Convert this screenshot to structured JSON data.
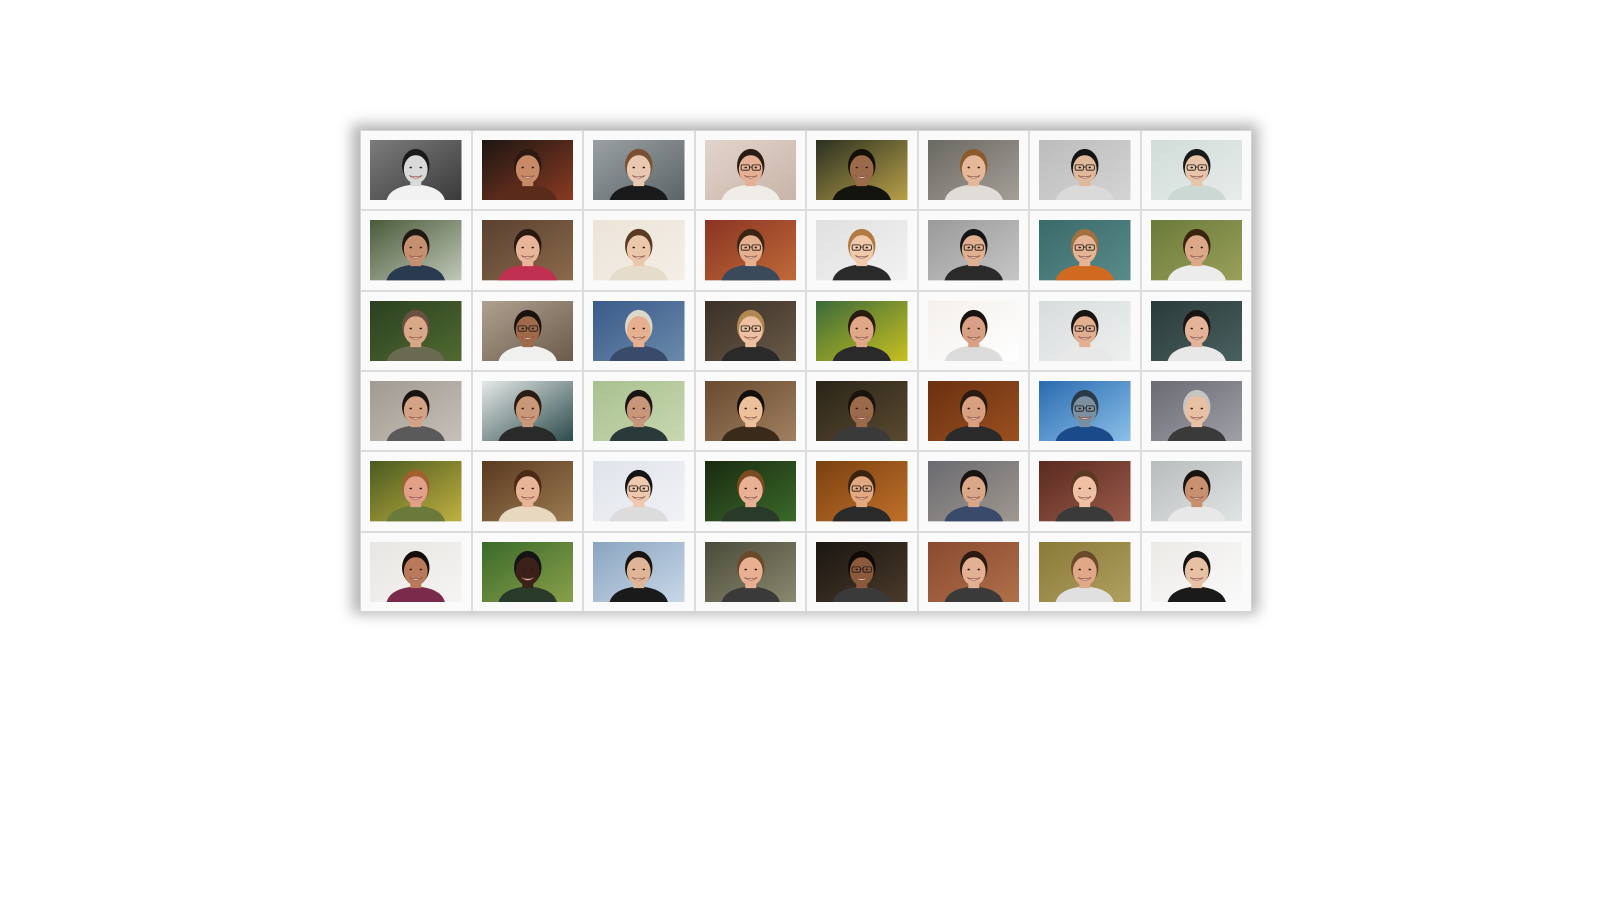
{
  "photos": [
    {
      "bg": "#7c7c7c",
      "bg2": "#3a3a3a",
      "skin": "#d9d9d9",
      "hair": "#1a1a1a",
      "shirt": "#f2f2f2",
      "glasses": false
    },
    {
      "bg": "#1c1612",
      "bg2": "#8a3a22",
      "skin": "#c88a66",
      "hair": "#2a1a12",
      "shirt": "#5a2a1a",
      "glasses": false
    },
    {
      "bg": "#9aa0a4",
      "bg2": "#5c6468",
      "skin": "#e8c8b0",
      "hair": "#7a5030",
      "shirt": "#1a1a1a",
      "glasses": false
    },
    {
      "bg": "#e2d4cc",
      "bg2": "#c8b4a8",
      "skin": "#e6b094",
      "hair": "#2a1c14",
      "shirt": "#f0ece8",
      "glasses": true
    },
    {
      "bg": "#2a3020",
      "bg2": "#b8a04a",
      "skin": "#9a6a4a",
      "hair": "#141008",
      "shirt": "#14140e",
      "glasses": false
    },
    {
      "bg": "#6a6862",
      "bg2": "#a4a098",
      "skin": "#e4b898",
      "hair": "#8a5a2a",
      "shirt": "#e0dcd8",
      "glasses": false
    },
    {
      "bg": "#bcbcbc",
      "bg2": "#d4d4d4",
      "skin": "#e0b89a",
      "hair": "#141414",
      "shirt": "#dadada",
      "glasses": true
    },
    {
      "bg": "#d0dcd8",
      "bg2": "#e8ecea",
      "skin": "#e8c4a8",
      "hair": "#1a1a1a",
      "shirt": "#ccd8d4",
      "glasses": true
    },
    {
      "bg": "#4a5a3a",
      "bg2": "#c0c8b8",
      "skin": "#c49070",
      "hair": "#201810",
      "shirt": "#2a3a50",
      "glasses": false
    },
    {
      "bg": "#5a4030",
      "bg2": "#8a6a4a",
      "skin": "#e8b49a",
      "hair": "#2a1810",
      "shirt": "#c03050",
      "glasses": false
    },
    {
      "bg": "#ece4d8",
      "bg2": "#f4eee6",
      "skin": "#ecc8aa",
      "hair": "#5a3a22",
      "shirt": "#e6dccc",
      "glasses": false
    },
    {
      "bg": "#8a3422",
      "bg2": "#c06a3a",
      "skin": "#e4b090",
      "hair": "#3a2414",
      "shirt": "#3a4a5a",
      "glasses": true
    },
    {
      "bg": "#e0e0e0",
      "bg2": "#f2f2f2",
      "skin": "#f0c8aa",
      "hair": "#b07a40",
      "shirt": "#2a2a2a",
      "glasses": true
    },
    {
      "bg": "#9a9a9a",
      "bg2": "#c6c6c6",
      "skin": "#e0b090",
      "hair": "#141414",
      "shirt": "#2a2a2a",
      "glasses": true
    },
    {
      "bg": "#3a6a6a",
      "bg2": "#5a8a8a",
      "skin": "#e4b494",
      "hair": "#a07040",
      "shirt": "#d06a20",
      "glasses": true
    },
    {
      "bg": "#6a7a3a",
      "bg2": "#9aa05a",
      "skin": "#dca88a",
      "hair": "#3a2410",
      "shirt": "#ececec",
      "glasses": false
    },
    {
      "bg": "#2a4020",
      "bg2": "#506a30",
      "skin": "#d8a888",
      "hair": "#6a5040",
      "shirt": "#6a6a50",
      "glasses": false
    },
    {
      "bg": "#b0a090",
      "bg2": "#6a5a4a",
      "skin": "#a06a4a",
      "hair": "#1a120c",
      "shirt": "#f0f0ee",
      "glasses": true
    },
    {
      "bg": "#3a5a8a",
      "bg2": "#6a8aaa",
      "skin": "#e6b090",
      "hair": "#dcd8cc",
      "shirt": "#3a4a6a",
      "glasses": false
    },
    {
      "bg": "#3a3026",
      "bg2": "#6a5a48",
      "skin": "#ecc0a0",
      "hair": "#b08850",
      "shirt": "#2a2a2a",
      "glasses": true
    },
    {
      "bg": "#3a6a3a",
      "bg2": "#c8c020",
      "skin": "#e0a888",
      "hair": "#2a1a10",
      "shirt": "#2a2a2a",
      "glasses": false
    },
    {
      "bg": "#f4f0ec",
      "bg2": "#ffffff",
      "skin": "#d8a084",
      "hair": "#1a120c",
      "shirt": "#dcdcdc",
      "glasses": false
    },
    {
      "bg": "#d8dcdc",
      "bg2": "#eef0f0",
      "skin": "#e2b090",
      "hair": "#1a1410",
      "shirt": "#e8e8e8",
      "glasses": true
    },
    {
      "bg": "#2a3a3a",
      "bg2": "#4a6060",
      "skin": "#e4b49a",
      "hair": "#1a1410",
      "shirt": "#e8e8e8",
      "glasses": false
    },
    {
      "bg": "#a09a92",
      "bg2": "#c6c0b8",
      "skin": "#d4a284",
      "hair": "#1a1410",
      "shirt": "#5a5a5a",
      "glasses": false
    },
    {
      "bg": "#e6e8e8",
      "bg2": "#2a4a4a",
      "skin": "#c89878",
      "hair": "#2a1c12",
      "shirt": "#2a2a2a",
      "glasses": false
    },
    {
      "bg": "#a8c090",
      "bg2": "#c8d8b0",
      "skin": "#c8967a",
      "hair": "#1a1410",
      "shirt": "#2a3a3a",
      "glasses": false
    },
    {
      "bg": "#6a4a30",
      "bg2": "#a08060",
      "skin": "#ecc09a",
      "hair": "#140e0a",
      "shirt": "#3a2a1a",
      "glasses": false
    },
    {
      "bg": "#2a2418",
      "bg2": "#5a4a30",
      "skin": "#9a6a4a",
      "hair": "#1a120c",
      "shirt": "#3a3a3a",
      "glasses": false
    },
    {
      "bg": "#6a3010",
      "bg2": "#9a5020",
      "skin": "#d8a080",
      "hair": "#2a1a10",
      "shirt": "#2a2a2a",
      "glasses": false
    },
    {
      "bg": "#2a6ab0",
      "bg2": "#8ac0e8",
      "skin": "#7a90a0",
      "hair": "#2a3a4a",
      "shirt": "#1a4a8a",
      "glasses": true
    },
    {
      "bg": "#6a6a72",
      "bg2": "#a0a0a8",
      "skin": "#e8c0a4",
      "hair": "#c8c4c0",
      "shirt": "#3a3a3a",
      "glasses": false
    },
    {
      "bg": "#4a5a20",
      "bg2": "#c0b040",
      "skin": "#e2a088",
      "hair": "#a06030",
      "shirt": "#6a7a3a",
      "glasses": false
    },
    {
      "bg": "#5a3a20",
      "bg2": "#9a7a50",
      "skin": "#e8b498",
      "hair": "#4a2a14",
      "shirt": "#e8d8c0",
      "glasses": false
    },
    {
      "bg": "#e0e4ea",
      "bg2": "#f0f2f6",
      "skin": "#f0c8ae",
      "hair": "#141414",
      "shirt": "#dcdcdc",
      "glasses": true
    },
    {
      "bg": "#1a2a10",
      "bg2": "#3a6a2a",
      "skin": "#e8b094",
      "hair": "#7a4a20",
      "shirt": "#2a3a2a",
      "glasses": false
    },
    {
      "bg": "#7a4010",
      "bg2": "#c0702a",
      "skin": "#e2a880",
      "hair": "#3a2410",
      "shirt": "#2a2a2a",
      "glasses": true
    },
    {
      "bg": "#6a6a70",
      "bg2": "#a09890",
      "skin": "#d8a888",
      "hair": "#1a1410",
      "shirt": "#3a4a6a",
      "glasses": false
    },
    {
      "bg": "#5a2a20",
      "bg2": "#9a5a4a",
      "skin": "#f0c0a4",
      "hair": "#5a3a22",
      "shirt": "#3a3a3a",
      "glasses": false
    },
    {
      "bg": "#b8bcbc",
      "bg2": "#e0e4e4",
      "skin": "#c8906e",
      "hair": "#1a1410",
      "shirt": "#e8e8e8",
      "glasses": false
    },
    {
      "bg": "#e8e6e2",
      "bg2": "#f6f4f2",
      "skin": "#b87a5a",
      "hair": "#140e0a",
      "shirt": "#7a2a4a",
      "glasses": false
    },
    {
      "bg": "#3a6a2a",
      "bg2": "#8aa04a",
      "skin": "#3a2218",
      "hair": "#141414",
      "shirt": "#2a3a2a",
      "glasses": false
    },
    {
      "bg": "#8aa4c0",
      "bg2": "#c8d8e8",
      "skin": "#e0b496",
      "hair": "#1a1410",
      "shirt": "#1a1a1a",
      "glasses": false
    },
    {
      "bg": "#4a4a3a",
      "bg2": "#8a8a70",
      "skin": "#e8b090",
      "hair": "#6a4a2a",
      "shirt": "#3a3a3a",
      "glasses": false
    },
    {
      "bg": "#1a1612",
      "bg2": "#4a3a2a",
      "skin": "#8a5a3a",
      "hair": "#100a06",
      "shirt": "#3a3a3a",
      "glasses": true
    },
    {
      "bg": "#8a4a30",
      "bg2": "#b0704a",
      "skin": "#e4b094",
      "hair": "#2a1a10",
      "shirt": "#3a3a3a",
      "glasses": false
    },
    {
      "bg": "#8a7a3a",
      "bg2": "#b0a060",
      "skin": "#e0a888",
      "hair": "#6a4a2a",
      "shirt": "#e0e0e0",
      "glasses": false
    },
    {
      "bg": "#eceae6",
      "bg2": "#fafafa",
      "skin": "#e8c0a4",
      "hair": "#141414",
      "shirt": "#1a1a1a",
      "glasses": false
    }
  ]
}
